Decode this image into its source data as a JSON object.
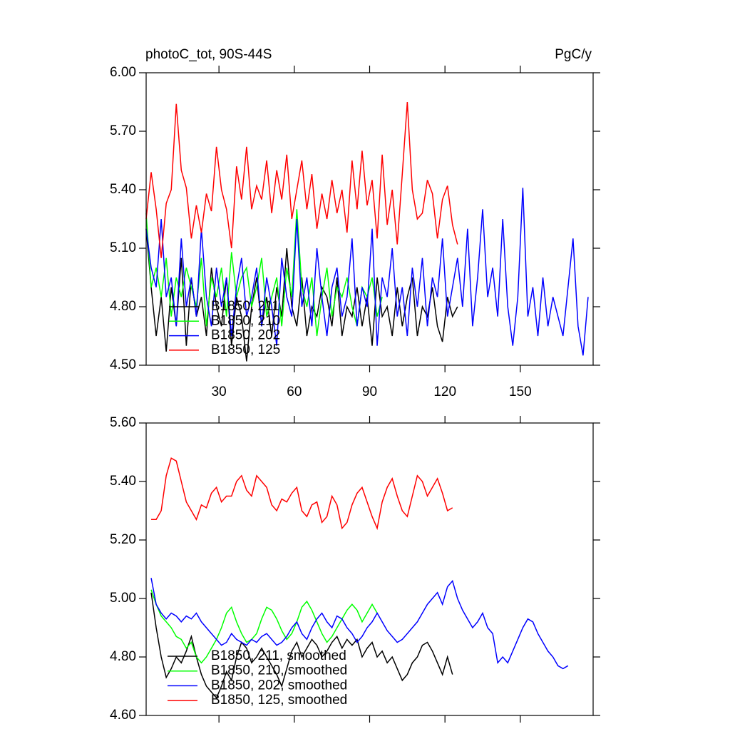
{
  "chart_data": [
    {
      "type": "line",
      "title": "photoC_tot, 90S-44S",
      "units": "PgC/y",
      "xlim": [
        1,
        179
      ],
      "xticks": [
        30,
        60,
        90,
        120,
        150
      ],
      "ylim": [
        4.5,
        6.0
      ],
      "yticks": [
        {
          "value": 4.5,
          "label": "4.50"
        },
        {
          "value": 4.8,
          "label": "4.80"
        },
        {
          "value": 5.1,
          "label": "5.10"
        },
        {
          "value": 5.4,
          "label": "5.40"
        },
        {
          "value": 5.7,
          "label": "5.70"
        },
        {
          "value": 6.0,
          "label": "6.00"
        }
      ],
      "x": [
        1,
        3,
        5,
        7,
        9,
        11,
        13,
        15,
        17,
        19,
        21,
        23,
        25,
        27,
        29,
        31,
        33,
        35,
        37,
        39,
        41,
        43,
        45,
        47,
        49,
        51,
        53,
        55,
        57,
        59,
        61,
        63,
        65,
        67,
        69,
        71,
        73,
        75,
        77,
        79,
        81,
        83,
        85,
        87,
        89,
        91,
        93,
        95,
        97,
        99,
        101,
        103,
        105,
        107,
        109,
        111,
        113,
        115,
        117,
        119,
        121,
        123,
        125,
        127,
        129,
        131,
        133,
        135,
        137,
        139,
        141,
        143,
        145,
        147,
        149,
        151,
        153,
        155,
        157,
        159,
        161,
        163,
        165,
        167,
        169,
        171,
        173,
        175,
        177
      ],
      "series": [
        {
          "name": "B1850, 211",
          "color": "#000000",
          "values": [
            5.2,
            4.9,
            4.65,
            4.85,
            4.57,
            4.9,
            4.7,
            5.05,
            4.6,
            4.95,
            4.75,
            4.85,
            4.65,
            5.0,
            4.8,
            4.7,
            4.95,
            4.6,
            4.85,
            4.75,
            4.52,
            4.8,
            4.95,
            4.7,
            4.85,
            4.65,
            4.9,
            4.75,
            5.1,
            4.8,
            4.7,
            4.95,
            4.65,
            4.8,
            4.75,
            4.9,
            4.85,
            4.7,
            4.95,
            4.65,
            4.8,
            4.75,
            4.9,
            4.7,
            4.85,
            4.6,
            4.95,
            4.75,
            4.8,
            4.65,
            4.9,
            4.7,
            4.85,
            4.95,
            4.65,
            4.8,
            4.75,
            4.9,
            4.7,
            4.62,
            4.85,
            4.75,
            4.8,
            null,
            null,
            null,
            null,
            null,
            null,
            null,
            null,
            null,
            null,
            null,
            null,
            null,
            null,
            null,
            null,
            null,
            null,
            null,
            null,
            null,
            null,
            null,
            null,
            null,
            null
          ]
        },
        {
          "name": "B1850, 210",
          "color": "#00ff00",
          "values": [
            5.28,
            4.9,
            5.0,
            4.85,
            5.05,
            4.75,
            4.95,
            4.85,
            5.0,
            4.9,
            4.8,
            5.05,
            4.7,
            4.95,
            4.85,
            5.0,
            4.75,
            5.08,
            4.85,
            4.95,
            5.0,
            4.8,
            4.9,
            5.05,
            4.75,
            4.85,
            4.95,
            4.7,
            5.0,
            4.85,
            5.3,
            4.9,
            4.8,
            4.95,
            4.65,
            4.85,
            5.0,
            4.75,
            4.9,
            4.85,
            4.95,
            4.8,
            4.7,
            4.9,
            4.85,
            4.95,
            4.75,
            4.85,
            null,
            null,
            null,
            null,
            null,
            null,
            null,
            null,
            null,
            null,
            null,
            null,
            null,
            null,
            null,
            null,
            null,
            null,
            null,
            null,
            null,
            null,
            null,
            null,
            null,
            null,
            null,
            null,
            null,
            null,
            null,
            null,
            null,
            null,
            null,
            null,
            null,
            null,
            null,
            null,
            null
          ]
        },
        {
          "name": "B1850, 202",
          "color": "#0000ff",
          "values": [
            5.2,
            5.0,
            4.9,
            5.25,
            4.85,
            4.95,
            4.7,
            5.15,
            4.8,
            4.95,
            4.75,
            5.2,
            4.85,
            4.7,
            5.0,
            4.8,
            4.95,
            4.65,
            4.9,
            5.05,
            4.75,
            4.85,
            5.0,
            4.7,
            4.95,
            4.8,
            4.6,
            5.05,
            4.85,
            4.75,
            5.25,
            4.8,
            4.95,
            4.7,
            5.1,
            4.85,
            4.65,
            4.9,
            5.0,
            4.75,
            4.85,
            5.15,
            4.7,
            4.9,
            4.8,
            5.2,
            4.6,
            4.95,
            4.85,
            5.1,
            4.75,
            4.9,
            4.65,
            5.0,
            4.8,
            5.05,
            4.7,
            4.95,
            4.85,
            5.15,
            4.75,
            4.9,
            5.05,
            4.8,
            5.2,
            4.7,
            4.95,
            5.3,
            4.85,
            5.0,
            4.75,
            5.25,
            4.8,
            4.6,
            4.85,
            5.41,
            4.75,
            4.9,
            4.65,
            4.95,
            4.7,
            4.85,
            4.75,
            4.65,
            4.9,
            5.15,
            4.7,
            4.55,
            4.85
          ]
        },
        {
          "name": "B1850, 125",
          "color": "#ff0000",
          "values": [
            5.25,
            5.49,
            5.3,
            5.05,
            5.33,
            5.4,
            5.84,
            5.5,
            5.41,
            5.15,
            5.32,
            5.18,
            5.38,
            5.29,
            5.62,
            5.4,
            5.3,
            5.1,
            5.52,
            5.35,
            5.62,
            5.3,
            5.42,
            5.35,
            5.55,
            5.28,
            5.5,
            5.35,
            5.58,
            5.25,
            5.4,
            5.55,
            5.3,
            5.48,
            5.2,
            5.38,
            5.25,
            5.45,
            5.28,
            5.4,
            5.18,
            5.55,
            5.3,
            5.6,
            5.32,
            5.45,
            5.15,
            5.58,
            5.22,
            5.4,
            5.12,
            5.48,
            5.85,
            5.4,
            5.25,
            5.28,
            5.45,
            5.38,
            5.15,
            5.35,
            5.42,
            5.22,
            5.12,
            null,
            null,
            null,
            null,
            null,
            null,
            null,
            null,
            null,
            null,
            null,
            null,
            null,
            null,
            null,
            null,
            null,
            null,
            null,
            null,
            null,
            null,
            null,
            null,
            null,
            null
          ]
        }
      ]
    },
    {
      "type": "line",
      "xlim": [
        1,
        179
      ],
      "xticks": [
        30,
        60,
        90,
        120,
        150
      ],
      "ylim": [
        4.6,
        5.6
      ],
      "yticks": [
        {
          "value": 4.6,
          "label": "4.60"
        },
        {
          "value": 4.8,
          "label": "4.80"
        },
        {
          "value": 5.0,
          "label": "5.00"
        },
        {
          "value": 5.2,
          "label": "5.20"
        },
        {
          "value": 5.4,
          "label": "5.40"
        },
        {
          "value": 5.6,
          "label": "5.60"
        }
      ],
      "x": [
        1,
        3,
        5,
        7,
        9,
        11,
        13,
        15,
        17,
        19,
        21,
        23,
        25,
        27,
        29,
        31,
        33,
        35,
        37,
        39,
        41,
        43,
        45,
        47,
        49,
        51,
        53,
        55,
        57,
        59,
        61,
        63,
        65,
        67,
        69,
        71,
        73,
        75,
        77,
        79,
        81,
        83,
        85,
        87,
        89,
        91,
        93,
        95,
        97,
        99,
        101,
        103,
        105,
        107,
        109,
        111,
        113,
        115,
        117,
        119,
        121,
        123,
        125,
        127,
        129,
        131,
        133,
        135,
        137,
        139,
        141,
        143,
        145,
        147,
        149,
        151,
        153,
        155,
        157,
        159,
        161,
        163,
        165,
        167,
        169,
        171,
        173,
        175,
        177
      ],
      "series": [
        {
          "name": "B1850, 211, smoothed",
          "color": "#000000",
          "values": [
            null,
            5.02,
            4.9,
            4.8,
            4.73,
            4.76,
            4.8,
            4.78,
            4.82,
            4.87,
            4.8,
            4.74,
            4.7,
            4.68,
            4.66,
            4.7,
            4.75,
            4.72,
            4.8,
            4.85,
            4.83,
            4.78,
            4.8,
            4.83,
            4.8,
            4.77,
            4.74,
            4.7,
            4.76,
            4.82,
            4.85,
            4.8,
            4.83,
            4.86,
            4.84,
            4.8,
            4.82,
            4.85,
            4.87,
            4.83,
            4.86,
            4.84,
            4.86,
            4.8,
            4.83,
            4.85,
            4.8,
            4.82,
            4.78,
            4.8,
            4.76,
            4.72,
            4.74,
            4.78,
            4.8,
            4.84,
            4.85,
            4.82,
            4.78,
            4.74,
            4.8,
            4.74,
            null,
            null,
            null,
            null,
            null,
            null,
            null,
            null,
            null,
            null,
            null,
            null,
            null,
            null,
            null,
            null,
            null,
            null,
            null,
            null,
            null,
            null,
            null,
            null,
            null,
            null,
            null
          ]
        },
        {
          "name": "B1850, 210, smoothed",
          "color": "#00ff00",
          "values": [
            null,
            5.03,
            4.98,
            4.94,
            4.92,
            4.9,
            4.87,
            4.86,
            4.83,
            4.85,
            4.8,
            4.78,
            4.8,
            4.83,
            4.86,
            4.9,
            4.95,
            4.97,
            4.92,
            4.88,
            4.85,
            4.86,
            4.88,
            4.93,
            4.97,
            4.96,
            4.93,
            4.89,
            4.86,
            4.88,
            4.92,
            4.97,
            4.99,
            4.96,
            4.92,
            4.88,
            4.85,
            4.87,
            4.9,
            4.93,
            4.96,
            4.98,
            4.96,
            4.92,
            4.95,
            4.98,
            4.95,
            null,
            null,
            null,
            null,
            null,
            null,
            null,
            null,
            null,
            null,
            null,
            null,
            null,
            null,
            null,
            null,
            null,
            null,
            null,
            null,
            null,
            null,
            null,
            null,
            null,
            null,
            null,
            null,
            null,
            null,
            null,
            null,
            null,
            null,
            null,
            null,
            null,
            null,
            null,
            null,
            null,
            null
          ]
        },
        {
          "name": "B1850, 202, smoothed",
          "color": "#0000ff",
          "values": [
            null,
            5.07,
            4.98,
            4.95,
            4.93,
            4.95,
            4.94,
            4.92,
            4.94,
            4.93,
            4.95,
            4.92,
            4.9,
            4.88,
            4.86,
            4.84,
            4.85,
            4.88,
            4.86,
            4.85,
            4.84,
            4.86,
            4.85,
            4.87,
            4.88,
            4.86,
            4.84,
            4.85,
            4.87,
            4.9,
            4.92,
            4.88,
            4.86,
            4.9,
            4.93,
            4.95,
            4.92,
            4.9,
            4.94,
            4.93,
            4.9,
            4.88,
            4.85,
            4.87,
            4.9,
            4.92,
            4.95,
            4.92,
            4.89,
            4.87,
            4.85,
            4.86,
            4.88,
            4.9,
            4.92,
            4.95,
            4.98,
            5.0,
            5.02,
            4.98,
            5.04,
            5.06,
            5.0,
            4.96,
            4.93,
            4.9,
            4.92,
            4.95,
            4.9,
            4.88,
            4.78,
            4.8,
            4.78,
            4.82,
            4.86,
            4.9,
            4.93,
            4.92,
            4.88,
            4.85,
            4.82,
            4.8,
            4.77,
            4.76,
            4.77,
            null,
            null,
            null,
            null
          ]
        },
        {
          "name": "B1850, 125, smoothed",
          "color": "#ff0000",
          "values": [
            null,
            5.27,
            5.27,
            5.3,
            5.42,
            5.48,
            5.47,
            5.4,
            5.33,
            5.3,
            5.27,
            5.32,
            5.31,
            5.36,
            5.38,
            5.33,
            5.35,
            5.35,
            5.4,
            5.42,
            5.37,
            5.35,
            5.42,
            5.4,
            5.38,
            5.32,
            5.3,
            5.34,
            5.33,
            5.36,
            5.38,
            5.3,
            5.28,
            5.32,
            5.33,
            5.26,
            5.28,
            5.35,
            5.32,
            5.24,
            5.26,
            5.32,
            5.36,
            5.38,
            5.33,
            5.28,
            5.24,
            5.33,
            5.38,
            5.41,
            5.35,
            5.3,
            5.28,
            5.35,
            5.42,
            5.4,
            5.35,
            5.38,
            5.41,
            5.36,
            5.3,
            5.31,
            null,
            null,
            null,
            null,
            null,
            null,
            null,
            null,
            null,
            null,
            null,
            null,
            null,
            null,
            null,
            null,
            null,
            null,
            null,
            null,
            null,
            null,
            null,
            null,
            null,
            null,
            null
          ]
        }
      ]
    }
  ]
}
